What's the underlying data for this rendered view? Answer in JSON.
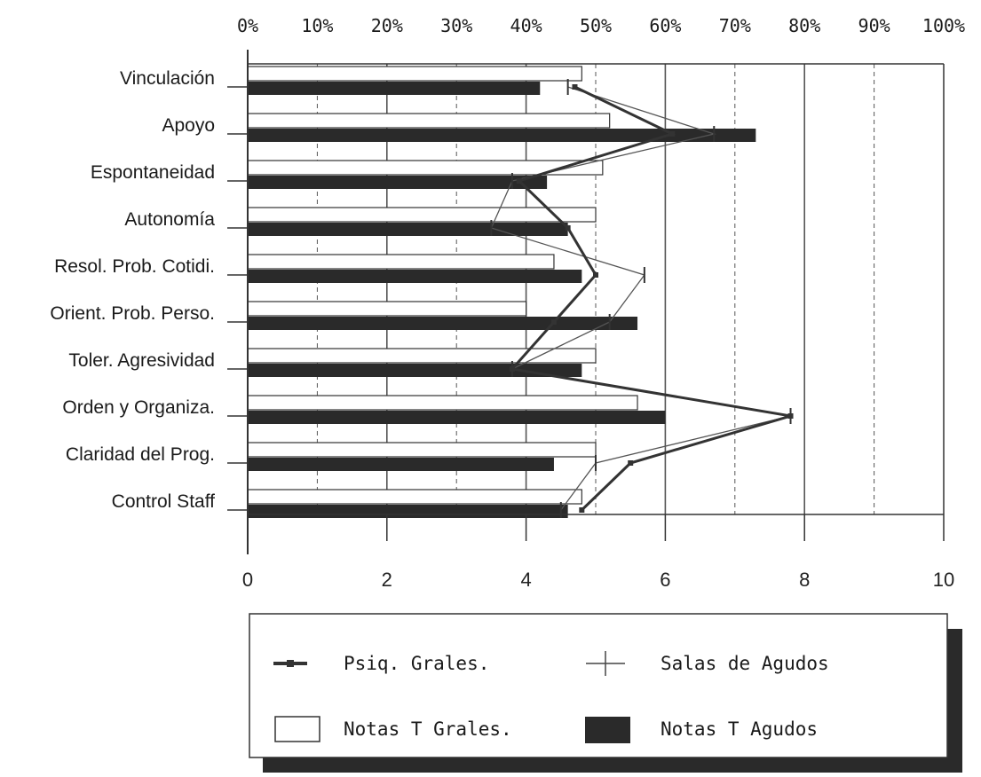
{
  "chart_data": {
    "type": "bar",
    "orientation": "horizontal",
    "categories": [
      "Vinculación",
      "Apoyo",
      "Espontaneidad",
      "Autonomía",
      "Resol. Prob. Cotidi.",
      "Orient. Prob. Perso.",
      "Toler. Agresividad",
      "Orden y Organiza.",
      "Claridad del Prog.",
      "Control Staff"
    ],
    "series": [
      {
        "name": "Notas T Grales.",
        "kind": "bar",
        "color": "#ffffff",
        "values": [
          4.8,
          5.2,
          5.1,
          5.0,
          4.4,
          4.0,
          5.0,
          5.6,
          5.0,
          4.8
        ]
      },
      {
        "name": "Notas T Agudos",
        "kind": "bar",
        "color": "#2a2a2a",
        "values": [
          4.2,
          7.3,
          4.3,
          4.6,
          4.8,
          5.6,
          4.8,
          6.0,
          4.4,
          4.6
        ]
      },
      {
        "name": "Psiq. Grales.",
        "kind": "line",
        "color": "#333333",
        "values": [
          4.7,
          6.1,
          3.9,
          4.6,
          5.0,
          4.4,
          3.8,
          7.8,
          5.5,
          4.8
        ]
      },
      {
        "name": "Salas de Agudos",
        "kind": "line",
        "color": "#555555",
        "values": [
          4.6,
          6.7,
          3.8,
          3.5,
          5.7,
          5.2,
          3.8,
          7.8,
          5.0,
          4.5
        ]
      }
    ],
    "x_bottom": {
      "min": 0,
      "max": 10,
      "ticks": [
        "0",
        "2",
        "4",
        "6",
        "8",
        "10"
      ]
    },
    "x_top": {
      "min": 0,
      "max": 100,
      "ticks": [
        "0%",
        "10%",
        "20%",
        "30%",
        "40%",
        "50%",
        "60%",
        "70%",
        "80%",
        "90%",
        "100%"
      ]
    },
    "grid": "vertical",
    "legend_position": "bottom"
  }
}
